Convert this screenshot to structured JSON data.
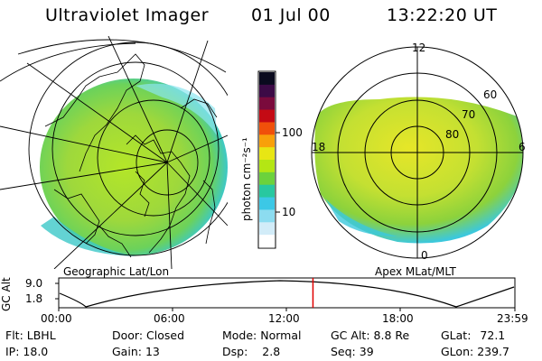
{
  "header": {
    "instrument": "Ultraviolet Imager",
    "date": "01 Jul 00",
    "time": "13:22:20 UT"
  },
  "colorbar": {
    "unit_label": "photon cm⁻²s⁻¹",
    "ticks": [
      "100",
      "10"
    ],
    "colors": [
      "#0a0a1e",
      "#3c0a46",
      "#7a0a3c",
      "#c40a14",
      "#f0500a",
      "#f8a00a",
      "#e8e614",
      "#b4e614",
      "#6cd23c",
      "#28c8a0",
      "#3cc8e6",
      "#8cdcf0",
      "#d2ecf8",
      "#ffffff"
    ]
  },
  "left_panel": {
    "caption": "Geographic Lat/Lon"
  },
  "right_panel": {
    "caption": "Apex MLat/MLT",
    "mlt_labels": {
      "top": "12",
      "left": "18",
      "right": "6",
      "bottom": "0"
    },
    "lat_labels": [
      "60",
      "70",
      "80"
    ]
  },
  "orbit": {
    "ylabel": "GC Alt",
    "y_ticks": [
      "9.0",
      "1.8"
    ],
    "x_ticks": [
      "00:00",
      "06:00",
      "12:00",
      "18:00",
      "23:59"
    ],
    "marker_time": "13:22"
  },
  "status": {
    "flt": {
      "label": "Flt:",
      "value": "LBHL"
    },
    "ip": {
      "label": "IP:",
      "value": "18.0"
    },
    "door": {
      "label": "Door:",
      "value": "Closed"
    },
    "gain": {
      "label": "Gain:",
      "value": "13"
    },
    "mode": {
      "label": "Mode:",
      "value": "Normal"
    },
    "dsp": {
      "label": "Dsp:",
      "value": "2.8"
    },
    "gcalt": {
      "label": "GC Alt:",
      "value": "8.8 Re"
    },
    "seq": {
      "label": "Seq:",
      "value": "39"
    },
    "glat": {
      "label": "GLat:",
      "value": "72.1"
    },
    "glon": {
      "label": "GLon:",
      "value": "239.7"
    }
  },
  "colors": {
    "aurora_green": "#8cd23c",
    "aurora_yellow": "#e6e628",
    "aurora_cyan": "#3cc8dc",
    "marker_red": "#e00000"
  }
}
